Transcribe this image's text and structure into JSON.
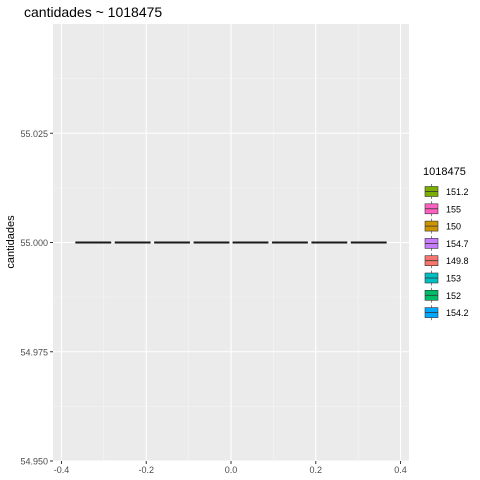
{
  "chart_data": {
    "type": "boxplot",
    "title": "cantidades ~ 1018475",
    "xlabel": "",
    "ylabel": "cantidades",
    "xlim": [
      -0.4,
      0.4
    ],
    "ylim": [
      54.95,
      55.05
    ],
    "x_ticks": [
      -0.4,
      -0.2,
      0.0,
      0.2,
      0.4
    ],
    "x_tick_labels": [
      "-0.4",
      "-0.2",
      "0.0",
      "0.2",
      "0.4"
    ],
    "y_ticks": [
      54.95,
      54.975,
      55.0,
      55.025
    ],
    "y_tick_labels": [
      "54.950",
      "54.975",
      "55.000",
      "55.025"
    ],
    "grid": true,
    "legend": {
      "title": "1018475",
      "placement": "right"
    },
    "series": [
      {
        "name": "151.2",
        "color": "#7CAE00",
        "x_center": -0.325,
        "value": 55.0
      },
      {
        "name": "155",
        "color": "#FF61C3",
        "x_center": -0.232,
        "value": 55.0
      },
      {
        "name": "150",
        "color": "#CD9600",
        "x_center": -0.139,
        "value": 55.0
      },
      {
        "name": "154.7",
        "color": "#C77CFF",
        "x_center": -0.046,
        "value": 55.0
      },
      {
        "name": "149.8",
        "color": "#F8766D",
        "x_center": 0.046,
        "value": 55.0
      },
      {
        "name": "153",
        "color": "#00BFC4",
        "x_center": 0.139,
        "value": 55.0
      },
      {
        "name": "152",
        "color": "#00BE67",
        "x_center": 0.232,
        "value": 55.0
      },
      {
        "name": "154.2",
        "color": "#00A9FF",
        "x_center": 0.325,
        "value": 55.0
      }
    ],
    "box_width": 0.0837
  }
}
